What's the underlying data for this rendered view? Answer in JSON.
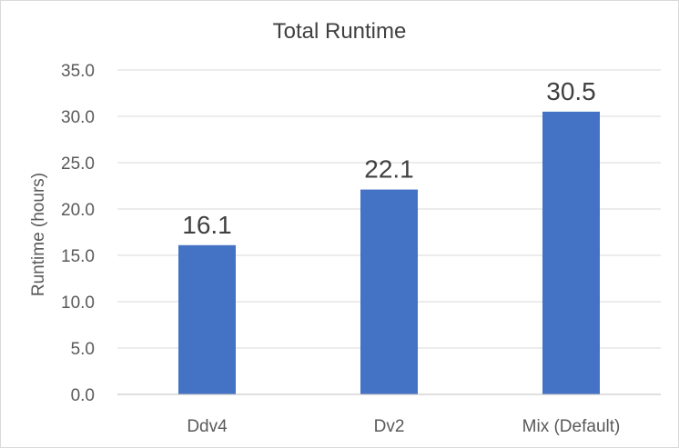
{
  "chart_data": {
    "type": "bar",
    "title": "Total Runtime",
    "xlabel": "",
    "ylabel": "Runtime (hours)",
    "categories": [
      "Ddv4",
      "Dv2",
      "Mix (Default)"
    ],
    "values": [
      16.1,
      22.1,
      30.5
    ],
    "data_labels": [
      "16.1",
      "22.1",
      "30.5"
    ],
    "ylim": [
      0,
      35
    ],
    "y_ticks": [
      "0.0",
      "5.0",
      "10.0",
      "15.0",
      "20.0",
      "25.0",
      "30.0",
      "35.0"
    ],
    "grid": true,
    "legend": "none",
    "bar_color": "#4472c4"
  }
}
